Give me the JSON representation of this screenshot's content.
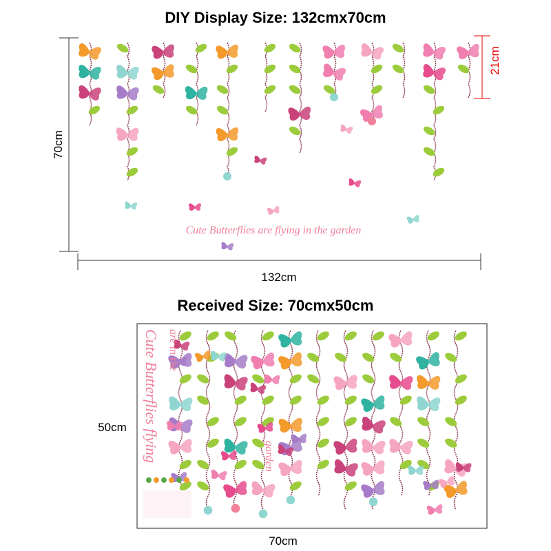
{
  "top": {
    "title": "DIY Display Size: 132cmx70cm",
    "height_label": "70cm",
    "drop_label": "21cm",
    "width_label": "132cm",
    "slogan": "Cute Butterflies are flying in the garden"
  },
  "bottom": {
    "title": "Received Size: 70cmx50cm",
    "height_label": "50cm",
    "width_label": "70cm",
    "sheet_texts": [
      "Cute Butterflies flying",
      "are in the",
      "garden"
    ]
  }
}
